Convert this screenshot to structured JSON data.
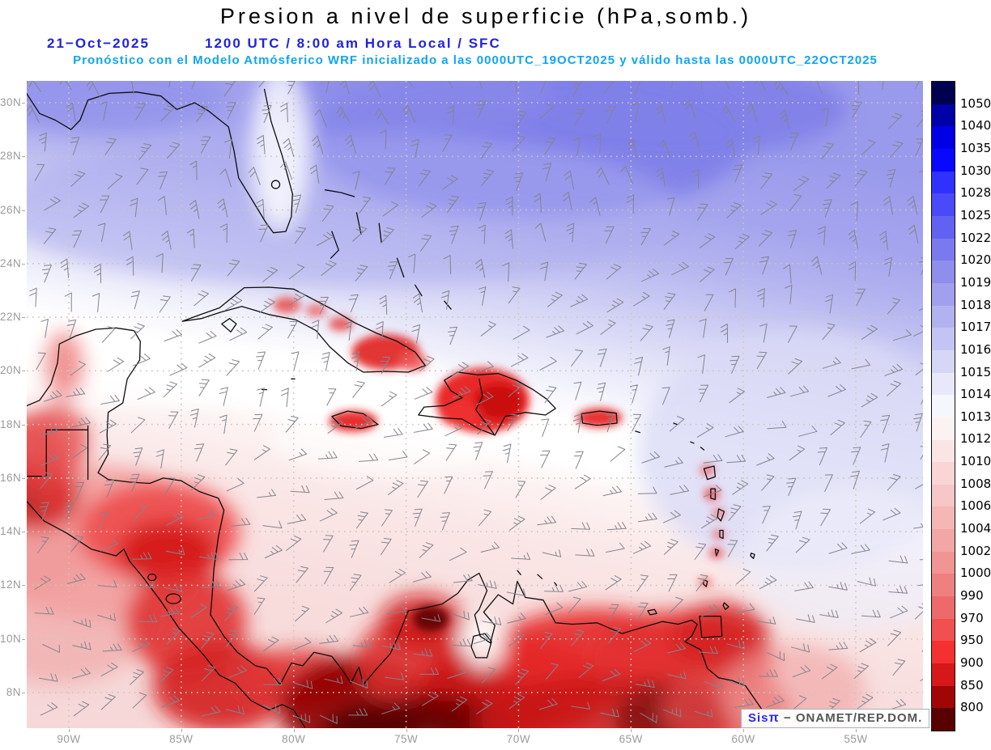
{
  "header": {
    "title": "Presion a nivel de superficie (hPa,somb.)",
    "date": "21−Oct−2025",
    "time": "1200 UTC / 8:00 am Hora Local / SFC",
    "forecast": "Pronóstico con el Modelo Atmósferico WRF inicializado a las 0000UTC_19OCT2025 y válido hasta las  0000UTC_22OCT2025"
  },
  "axes": {
    "lat": [
      "30N",
      "28N",
      "26N",
      "24N",
      "22N",
      "20N",
      "18N",
      "16N",
      "14N",
      "12N",
      "10N",
      "8N"
    ],
    "lon": [
      "90W",
      "85W",
      "80W",
      "75W",
      "70W",
      "65W",
      "60W",
      "55W"
    ]
  },
  "colorbar": {
    "levels": [
      "1050",
      "1040",
      "1035",
      "1030",
      "1028",
      "1025",
      "1022",
      "1020",
      "1019",
      "1018",
      "1017",
      "1016",
      "1015",
      "1014",
      "1013",
      "1012",
      "1010",
      "1008",
      "1006",
      "1004",
      "1002",
      "1000",
      "990",
      "970",
      "950",
      "900",
      "850",
      "800"
    ],
    "colors": [
      "#000050",
      "#0000a8",
      "#0000e4",
      "#0808ff",
      "#3030ff",
      "#4a4af8",
      "#6262f2",
      "#7a7aee",
      "#8e8eec",
      "#a0a0ee",
      "#b2b2f1",
      "#c4c4f4",
      "#d6d6f7",
      "#e8e8fa",
      "#f6f6fd",
      "#fdf2f2",
      "#fbe4e4",
      "#f9d5d5",
      "#f7c6c6",
      "#f5b6b6",
      "#f3a6a6",
      "#f19494",
      "#ef8080",
      "#ee6a6a",
      "#f05050",
      "#f53030",
      "#d51818",
      "#a00606",
      "#580000"
    ]
  },
  "branding": {
    "app": "Sis",
    "pi": "π",
    "separator": "−",
    "source": "ONAMET/REP.DOM."
  },
  "style": {
    "grid_color": "#c8c8ba",
    "barb_color": "#84848e",
    "coast_color": "#0c0c0c",
    "axis_label_color": "#9a9a9a",
    "title_color": "#000000",
    "date_color": "#2222dd",
    "forecast_color": "#0fa5f2"
  }
}
